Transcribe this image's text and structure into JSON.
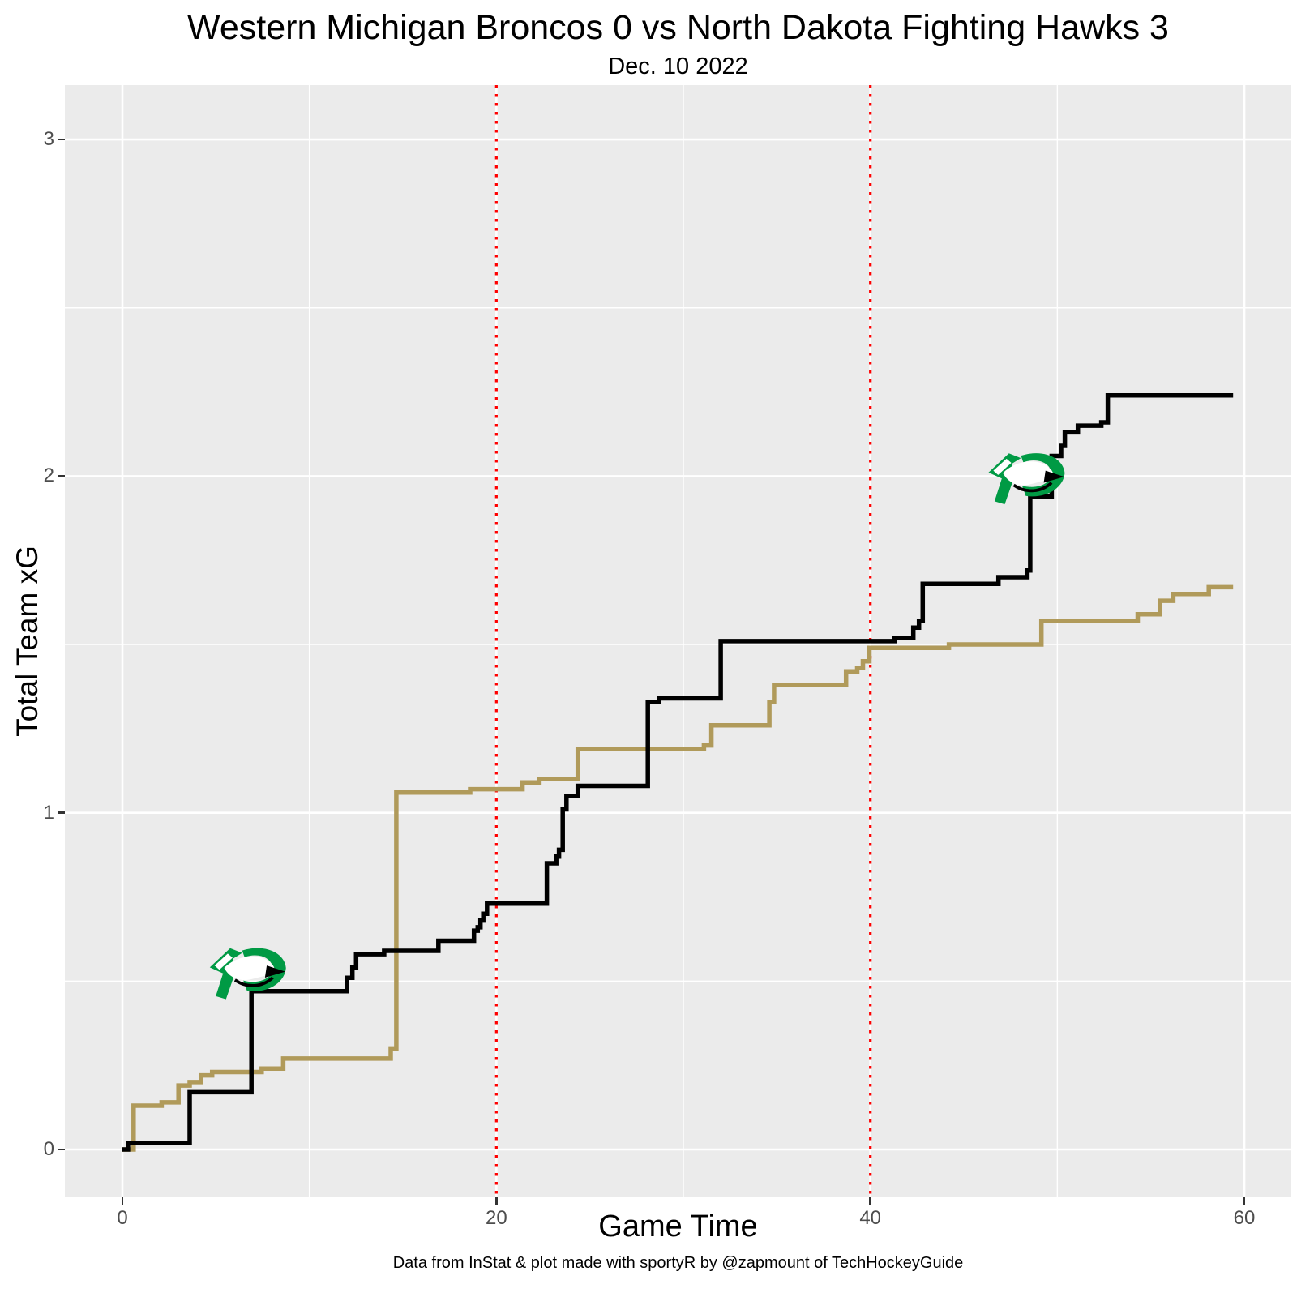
{
  "title": "Western Michigan Broncos 0 vs North Dakota Fighting Hawks 3",
  "subtitle": "Dec. 10 2022",
  "caption": "Data from InStat & plot made with sportyR by @zapmount of TechHockeyGuide",
  "x_axis": {
    "label": "Game Time",
    "ticks": [
      0,
      20,
      40,
      60
    ],
    "minor_ticks": [
      10,
      30,
      50
    ],
    "range": [
      -3.08,
      62.53
    ]
  },
  "y_axis": {
    "label": "Total Team xG",
    "ticks": [
      0,
      1,
      2,
      3
    ],
    "minor_ticks": [
      0.5,
      1.5,
      2.5
    ],
    "range": [
      -0.142,
      3.162
    ]
  },
  "period_lines": {
    "x": [
      20,
      40
    ],
    "style": "dotted"
  },
  "style": {
    "panel_bg": "#EBEBEB",
    "grid_major": "#FFFFFF",
    "grid_minor": "#FFFFFF",
    "tick_label_color": "#4D4D4D",
    "period_line_color": "#FF0000",
    "nd_color": "#000000",
    "wmu_color": "#B09A5A",
    "logo_green": "#009A44"
  },
  "chart_data": {
    "type": "line",
    "step_style": "step-after",
    "title": "Western Michigan Broncos 0 vs North Dakota Fighting Hawks 3",
    "subtitle": "Dec. 10 2022",
    "xlabel": "Game Time",
    "ylabel": "Total Team xG",
    "xlim": [
      0,
      60
    ],
    "ylim": [
      0,
      3
    ],
    "grid": true,
    "legend": "none",
    "series": [
      {
        "name": "Western Michigan Broncos",
        "color": "#B09A5A",
        "points": [
          [
            0,
            0
          ],
          [
            0.6,
            0.13
          ],
          [
            2.1,
            0.14
          ],
          [
            3.0,
            0.19
          ],
          [
            3.6,
            0.2
          ],
          [
            4.2,
            0.22
          ],
          [
            4.8,
            0.23
          ],
          [
            7.45,
            0.24
          ],
          [
            8.6,
            0.27
          ],
          [
            14.35,
            0.3
          ],
          [
            14.65,
            1.06
          ],
          [
            18.6,
            1.07
          ],
          [
            21.4,
            1.09
          ],
          [
            22.3,
            1.1
          ],
          [
            24.35,
            1.19
          ],
          [
            31.1,
            1.2
          ],
          [
            31.5,
            1.26
          ],
          [
            34.6,
            1.33
          ],
          [
            34.85,
            1.38
          ],
          [
            38.7,
            1.42
          ],
          [
            39.3,
            1.43
          ],
          [
            39.6,
            1.45
          ],
          [
            39.95,
            1.49
          ],
          [
            44.2,
            1.5
          ],
          [
            49.15,
            1.57
          ],
          [
            54.3,
            1.59
          ],
          [
            55.5,
            1.63
          ],
          [
            56.2,
            1.65
          ],
          [
            58.1,
            1.67
          ],
          [
            59.4,
            1.67
          ]
        ]
      },
      {
        "name": "North Dakota Fighting Hawks",
        "color": "#000000",
        "points": [
          [
            0,
            0
          ],
          [
            0.3,
            0.02
          ],
          [
            3.6,
            0.17
          ],
          [
            6.9,
            0.47
          ],
          [
            12.0,
            0.51
          ],
          [
            12.3,
            0.54
          ],
          [
            12.5,
            0.58
          ],
          [
            14.0,
            0.59
          ],
          [
            16.9,
            0.62
          ],
          [
            18.8,
            0.65
          ],
          [
            19.0,
            0.66
          ],
          [
            19.15,
            0.68
          ],
          [
            19.3,
            0.7
          ],
          [
            19.5,
            0.73
          ],
          [
            22.7,
            0.85
          ],
          [
            23.2,
            0.87
          ],
          [
            23.35,
            0.89
          ],
          [
            23.55,
            1.01
          ],
          [
            23.75,
            1.05
          ],
          [
            24.35,
            1.08
          ],
          [
            28.1,
            1.33
          ],
          [
            28.7,
            1.34
          ],
          [
            32.0,
            1.51
          ],
          [
            41.3,
            1.52
          ],
          [
            42.3,
            1.55
          ],
          [
            42.6,
            1.57
          ],
          [
            42.8,
            1.68
          ],
          [
            46.85,
            1.7
          ],
          [
            48.4,
            1.72
          ],
          [
            48.55,
            1.94
          ],
          [
            49.7,
            2.06
          ],
          [
            50.2,
            2.09
          ],
          [
            50.4,
            2.13
          ],
          [
            51.1,
            2.15
          ],
          [
            52.35,
            2.16
          ],
          [
            52.7,
            2.24
          ],
          [
            59.4,
            2.24
          ]
        ]
      }
    ],
    "goal_markers": {
      "team": "North Dakota Fighting Hawks",
      "marker": "north-dakota-fighting-hawks-logo",
      "points": [
        [
          6.9,
          0.47
        ],
        [
          48.55,
          1.94
        ]
      ]
    }
  }
}
